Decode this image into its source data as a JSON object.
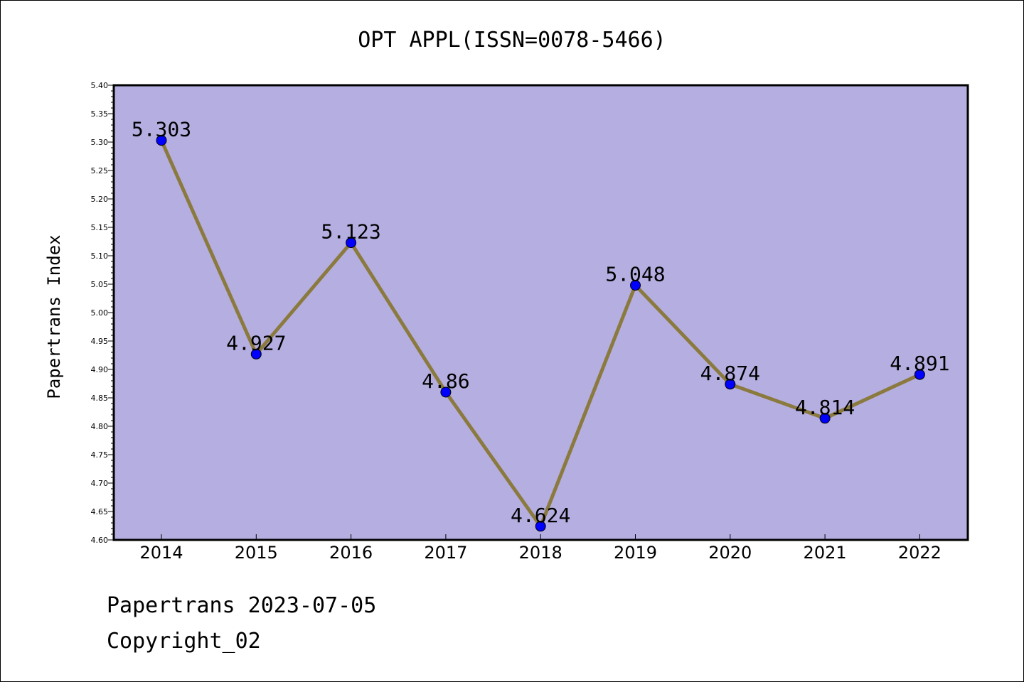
{
  "chart_data": {
    "type": "line",
    "title": "OPT APPL(ISSN=0078-5466)",
    "ylabel": "Papertrans Index",
    "xlabel": "",
    "categories": [
      "2014",
      "2015",
      "2016",
      "2017",
      "2018",
      "2019",
      "2020",
      "2021",
      "2022"
    ],
    "series": [
      {
        "values": [
          5.303,
          4.927,
          5.123,
          4.86,
          4.624,
          5.048,
          4.874,
          4.814,
          4.891
        ]
      }
    ],
    "data_labels": [
      "5.303",
      "4.927",
      "5.123",
      "4.86",
      "4.624",
      "5.048",
      "4.874",
      "4.814",
      "4.891"
    ],
    "ylim": [
      4.6,
      5.4
    ],
    "yticks": [
      "4.60",
      "4.65",
      "4.70",
      "4.75",
      "4.80",
      "4.85",
      "4.90",
      "4.95",
      "5.00",
      "5.05",
      "5.10",
      "5.15",
      "5.20",
      "5.25",
      "5.30",
      "5.35",
      "5.40"
    ],
    "grid": false,
    "colors": {
      "plot_background": "#b5aee1",
      "line": "#8b7a3e",
      "marker": "#0000ff"
    }
  },
  "footer": {
    "line1": "Papertrans 2023-07-05",
    "line2": "Copyright_02"
  }
}
